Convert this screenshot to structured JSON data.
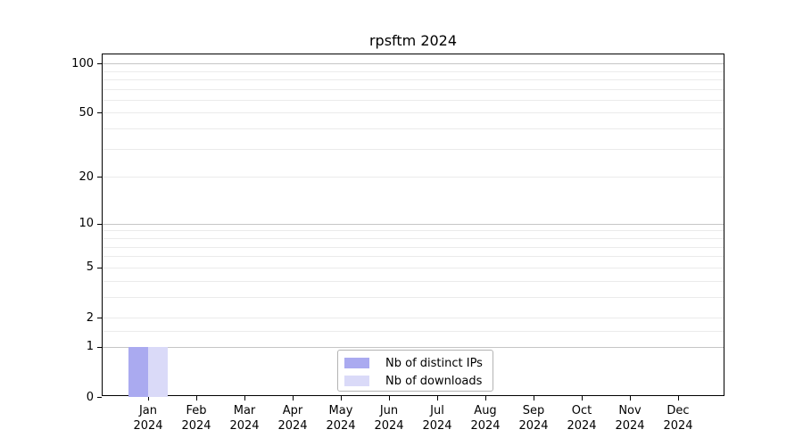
{
  "chart_data": {
    "type": "bar",
    "title": "rpsftm 2024",
    "categories": [
      "Jan 2024",
      "Feb 2024",
      "Mar 2024",
      "Apr 2024",
      "May 2024",
      "Jun 2024",
      "Jul 2024",
      "Aug 2024",
      "Sep 2024",
      "Oct 2024",
      "Nov 2024",
      "Dec 2024"
    ],
    "series": [
      {
        "name": "Nb of distinct IPs",
        "color": "#aaaaf0",
        "values": [
          1,
          0,
          0,
          0,
          0,
          0,
          0,
          0,
          0,
          0,
          0,
          0
        ]
      },
      {
        "name": "Nb of downloads",
        "color": "#dadaf8",
        "values": [
          1,
          0,
          0,
          0,
          0,
          0,
          0,
          0,
          0,
          0,
          0,
          0
        ]
      }
    ],
    "xlabel": "",
    "ylabel": "",
    "yscale": "log1p",
    "ylim": [
      0,
      113.3
    ],
    "y_tick_values": [
      0,
      1,
      2,
      5,
      10,
      20,
      50,
      100
    ],
    "y_tick_labels": [
      "0",
      "1",
      "2",
      "5",
      "10",
      "20",
      "50",
      "100"
    ],
    "gridlines": {
      "major_values": [
        1,
        10,
        100
      ],
      "minor_values": [
        1.5,
        2,
        3,
        4,
        5,
        6,
        7,
        8,
        9,
        20,
        30,
        40,
        50,
        60,
        70,
        80,
        90
      ]
    },
    "grid": "horizontal",
    "legend_position": "lower center",
    "bar_group_width_fraction": 0.8
  },
  "colors": {
    "background": "#ffffff",
    "axis": "#000000",
    "major_grid": "#c6c6c6",
    "minor_grid": "#ebebeb",
    "legend_border": "#b3b3b3",
    "bar_distinct_ips": "#aaaaf0",
    "bar_downloads": "#dadaf8"
  }
}
